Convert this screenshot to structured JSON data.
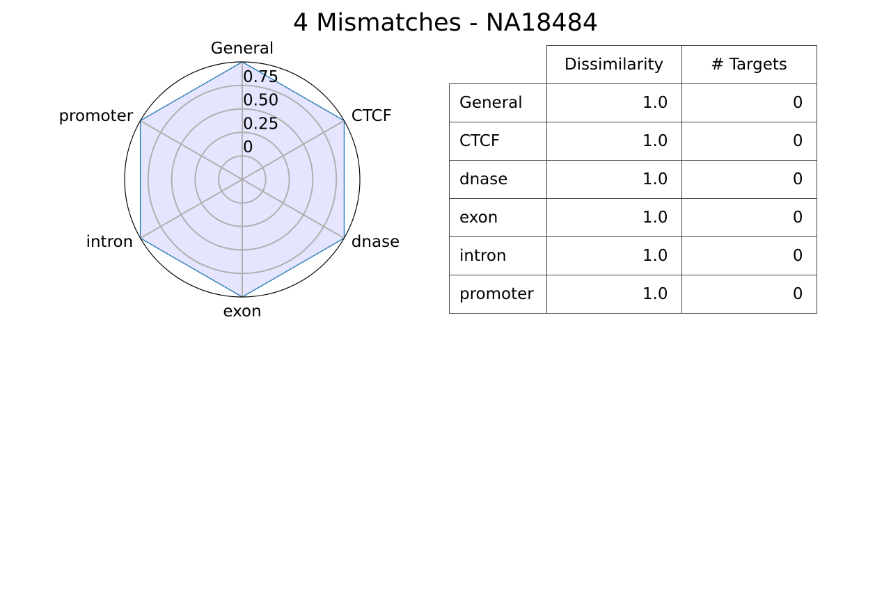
{
  "title": "4 Mismatches - NA18484",
  "chart_data": {
    "type": "radar",
    "title": "4 Mismatches - NA18484",
    "axes": [
      "General",
      "CTCF",
      "dnase",
      "exon",
      "intron",
      "promoter"
    ],
    "series": [
      {
        "values": [
          1.0,
          1.0,
          1.0,
          1.0,
          1.0,
          1.0
        ],
        "line_color": "#1f77b4",
        "fill_color": "#e5e5ff"
      }
    ],
    "radial_ticks": [
      0,
      0.25,
      0.5,
      0.75
    ],
    "radial_tick_labels": [
      "0",
      "0.25",
      "0.50",
      "0.75"
    ],
    "rlim": [
      -0.25,
      1.0
    ],
    "grid": true
  },
  "table": {
    "columns": [
      "Dissimilarity",
      "# Targets"
    ],
    "rows": [
      {
        "label": "General",
        "dissimilarity": "1.0",
        "targets": "0"
      },
      {
        "label": "CTCF",
        "dissimilarity": "1.0",
        "targets": "0"
      },
      {
        "label": "dnase",
        "dissimilarity": "1.0",
        "targets": "0"
      },
      {
        "label": "exon",
        "dissimilarity": "1.0",
        "targets": "0"
      },
      {
        "label": "intron",
        "dissimilarity": "1.0",
        "targets": "0"
      },
      {
        "label": "promoter",
        "dissimilarity": "1.0",
        "targets": "0"
      }
    ]
  }
}
